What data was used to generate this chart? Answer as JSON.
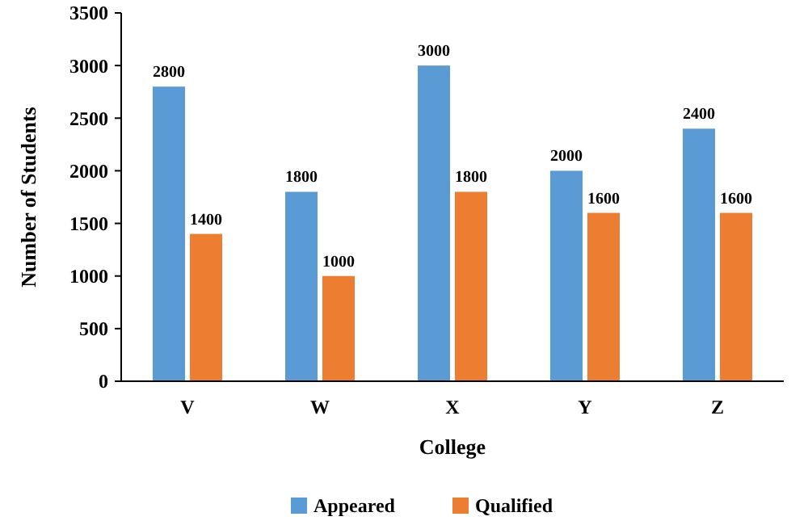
{
  "chart_data": {
    "type": "bar",
    "xlabel": "College",
    "ylabel": "Number of Students",
    "categories": [
      "V",
      "W",
      "X",
      "Y",
      "Z"
    ],
    "series": [
      {
        "name": "Appeared",
        "color": "#5b9bd5",
        "values": [
          2800,
          1800,
          3000,
          2000,
          2400
        ]
      },
      {
        "name": "Qualified",
        "color": "#ed7d31",
        "values": [
          1400,
          1000,
          1800,
          1600,
          1600
        ]
      }
    ],
    "ylim": [
      0,
      3500
    ],
    "yticks": [
      0,
      500,
      1000,
      1500,
      2000,
      2500,
      3000,
      3500
    ],
    "data_labels": true,
    "legend": "bottom",
    "grid": false
  }
}
